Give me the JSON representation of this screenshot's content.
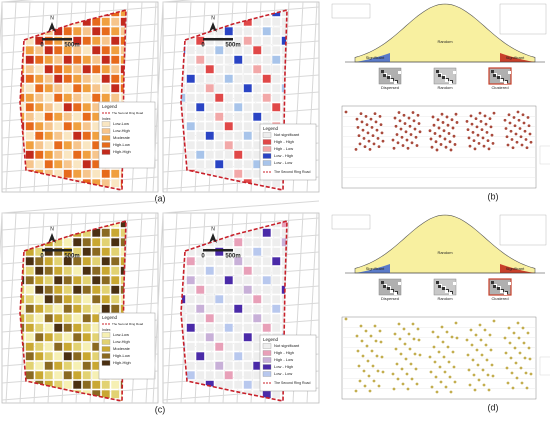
{
  "maps": [
    {
      "label": "(a)",
      "north": "N",
      "scale": [
        "0",
        "500m"
      ],
      "kind": "choropleth",
      "legend": {
        "title": "Legend",
        "road": "The Second Ring Road",
        "header": "Index",
        "items": [
          {
            "label": "Low-Low",
            "color": "#f9e6c2"
          },
          {
            "label": "Low-High",
            "color": "#f6c58c"
          },
          {
            "label": "Moderate",
            "color": "#f0a040"
          },
          {
            "label": "High-Low",
            "color": "#e66a1c"
          },
          {
            "label": "High-High",
            "color": "#c22a1c"
          }
        ]
      }
    },
    {
      "north": "N",
      "scale": [
        "0",
        "500m"
      ],
      "kind": "lisa",
      "legend": {
        "title": "Legend",
        "road": "The Second Ring Road",
        "items": [
          {
            "label": "Not significant",
            "color": "#eeeeee"
          },
          {
            "label": "High - High",
            "color": "#e04848"
          },
          {
            "label": "High - Low",
            "color": "#f2a8a8"
          },
          {
            "label": "Low - High",
            "color": "#2a44c4"
          },
          {
            "label": "Low - Low",
            "color": "#a8c4ea"
          }
        ]
      }
    },
    {
      "label": "(c)",
      "north": "N",
      "scale": [
        "0",
        "500m"
      ],
      "kind": "choropleth",
      "legend": {
        "title": "Legend",
        "road": "The Second Ring Road",
        "header": "Index",
        "items": [
          {
            "label": "Low-Low",
            "color": "#f6f0b4"
          },
          {
            "label": "Low-High",
            "color": "#e2d272"
          },
          {
            "label": "Moderate",
            "color": "#c9a832"
          },
          {
            "label": "High-Low",
            "color": "#8a6a22"
          },
          {
            "label": "High-High",
            "color": "#4a3012"
          }
        ]
      }
    },
    {
      "north": "N",
      "scale": [
        "0",
        "500m"
      ],
      "kind": "lisa",
      "legend": {
        "title": "Legend",
        "road": "The Second Ring Road",
        "items": [
          {
            "label": "Not significant",
            "color": "#eeeeee"
          },
          {
            "label": "High - High",
            "color": "#e8a0b8"
          },
          {
            "label": "High - Low",
            "color": "#c8b0d8"
          },
          {
            "label": "Low - High",
            "color": "#4a2aa8"
          },
          {
            "label": "Low - Low",
            "color": "#b8c8ee"
          }
        ]
      }
    }
  ],
  "stats": [
    {
      "label": "(b)",
      "curve": [
        "Significant",
        "Random",
        "Significant"
      ],
      "patterns": [
        "Dispersed",
        "Random",
        "Clustered"
      ],
      "dot": "#9a2a1a"
    },
    {
      "label": "(d)",
      "curve": [
        "Significant",
        "Random",
        "Significant"
      ],
      "patterns": [
        "Dispersed",
        "Random",
        "Clustered"
      ],
      "dot": "#b8a030"
    }
  ]
}
